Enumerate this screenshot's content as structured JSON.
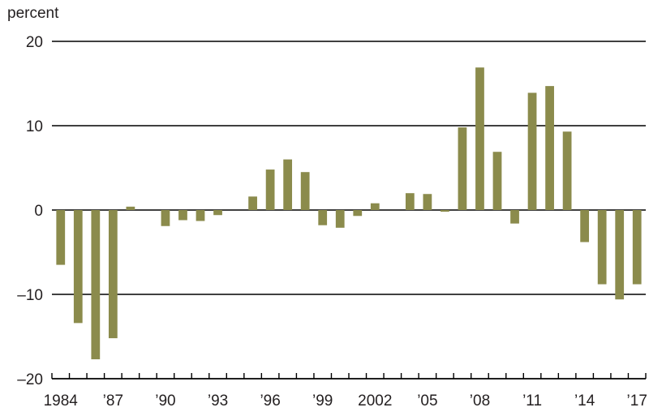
{
  "chart_data": {
    "type": "bar",
    "ylabel": "percent",
    "ylim": [
      -20,
      20
    ],
    "yticks": [
      20,
      10,
      0,
      -10,
      -20
    ],
    "ytick_labels": [
      "20",
      "10",
      "0",
      "–10",
      "–20"
    ],
    "grid": true,
    "bar_color": "#8b8b4c",
    "categories": [
      1984,
      1985,
      1986,
      1987,
      1988,
      1989,
      1990,
      1991,
      1992,
      1993,
      1994,
      1995,
      1996,
      1997,
      1998,
      1999,
      2000,
      2001,
      2002,
      2003,
      2004,
      2005,
      2006,
      2007,
      2008,
      2009,
      2010,
      2011,
      2012,
      2013,
      2014,
      2015,
      2016,
      2017
    ],
    "values": [
      -6.5,
      -13.4,
      -17.7,
      -15.2,
      0.4,
      0,
      -1.9,
      -1.2,
      -1.3,
      -0.6,
      0,
      1.6,
      4.8,
      6.0,
      4.5,
      -1.8,
      -2.1,
      -0.7,
      0.8,
      0,
      2.0,
      1.9,
      -0.2,
      9.8,
      16.9,
      6.9,
      -1.6,
      13.9,
      14.7,
      9.3,
      -3.8,
      -8.8,
      -10.6,
      -8.8
    ],
    "xtick_labels": [
      {
        "year": 1984,
        "label": "1984"
      },
      {
        "year": 1987,
        "label": "’87"
      },
      {
        "year": 1990,
        "label": "’90"
      },
      {
        "year": 1993,
        "label": "’93"
      },
      {
        "year": 1996,
        "label": "’96"
      },
      {
        "year": 1999,
        "label": "’99"
      },
      {
        "year": 2002,
        "label": "2002"
      },
      {
        "year": 2005,
        "label": "’05"
      },
      {
        "year": 2008,
        "label": "’08"
      },
      {
        "year": 2011,
        "label": "’11"
      },
      {
        "year": 2014,
        "label": "’14"
      },
      {
        "year": 2017,
        "label": "’17"
      }
    ]
  }
}
